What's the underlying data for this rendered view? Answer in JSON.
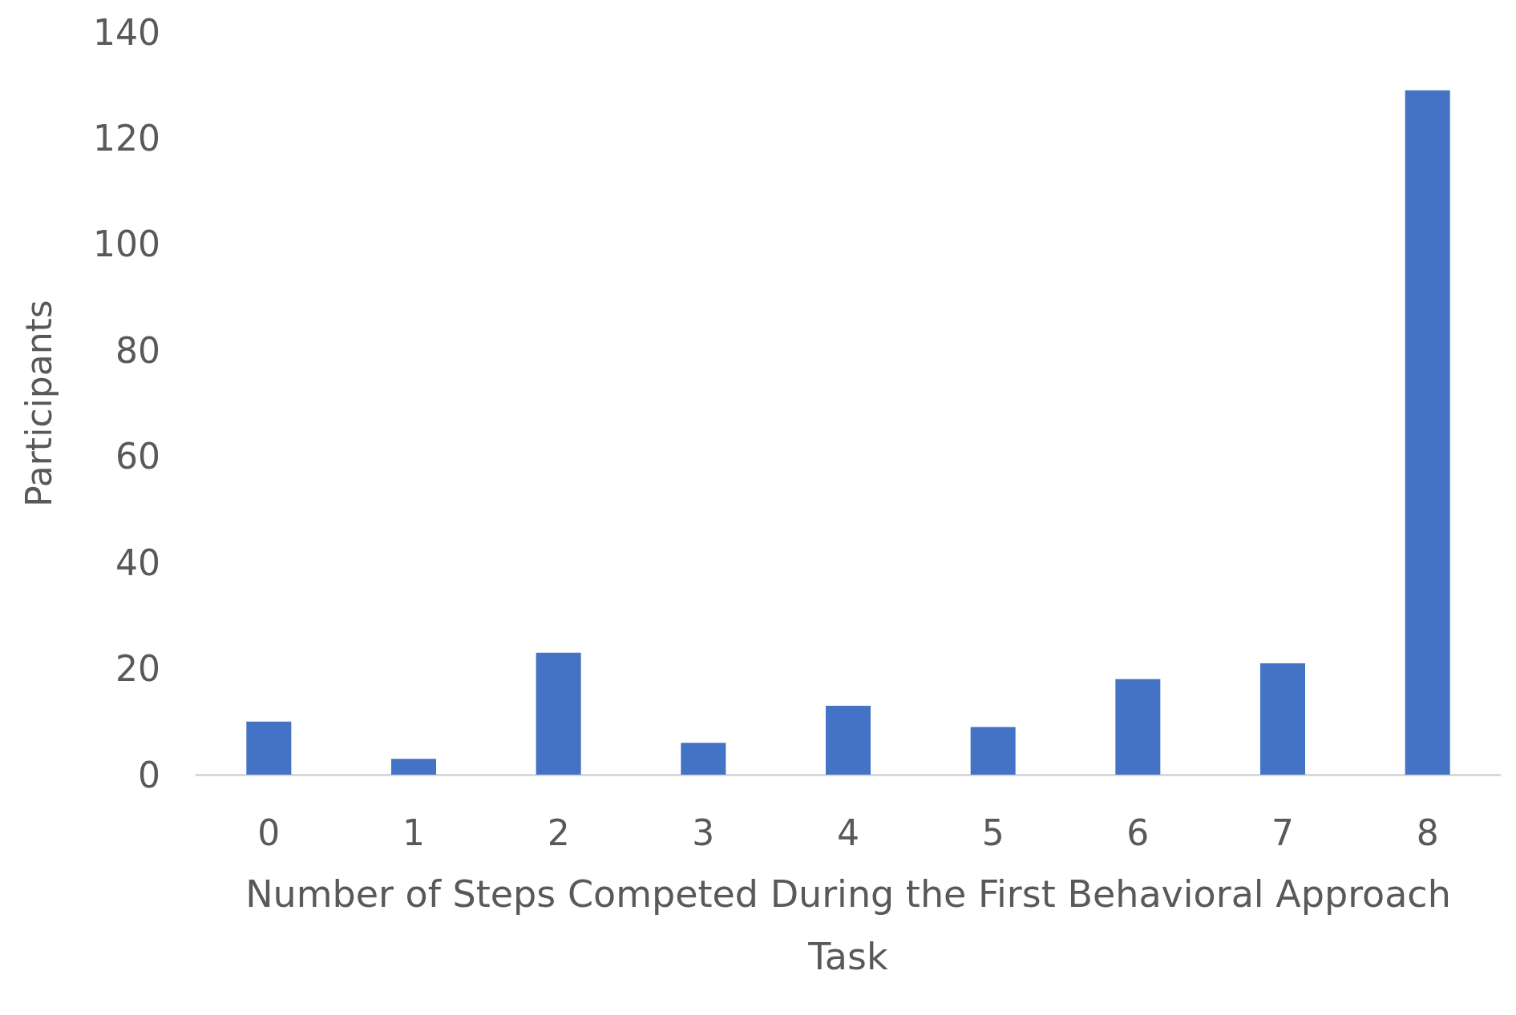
{
  "chart_data": {
    "type": "bar",
    "categories": [
      "0",
      "1",
      "2",
      "3",
      "4",
      "5",
      "6",
      "7",
      "8"
    ],
    "values": [
      10,
      3,
      23,
      6,
      13,
      9,
      18,
      21,
      129
    ],
    "color": "#4472c4",
    "xlabel": "Number of Steps Competed During the First Behavioral Approach\nTask",
    "ylabel": "Participants",
    "ylim": [
      0,
      140
    ],
    "yticks": [
      0,
      20,
      40,
      60,
      80,
      100,
      120,
      140
    ],
    "grid": false
  }
}
